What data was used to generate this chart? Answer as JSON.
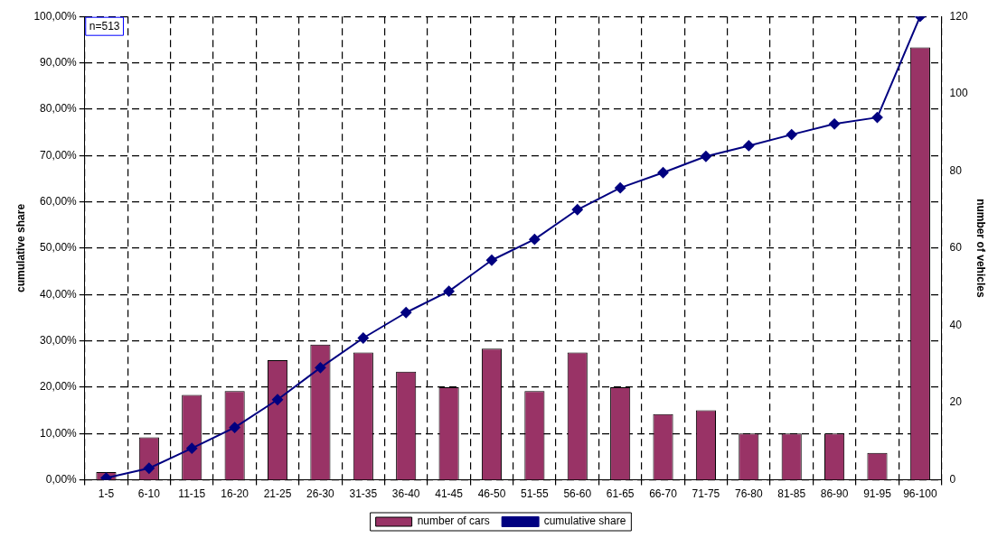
{
  "chart_data": {
    "type": "bar",
    "categories": [
      "1-5",
      "6-10",
      "11-15",
      "16-20",
      "21-25",
      "26-30",
      "31-35",
      "36-40",
      "41-45",
      "46-50",
      "51-55",
      "56-60",
      "61-65",
      "66-70",
      "71-75",
      "76-80",
      "81-85",
      "86-90",
      "91-95",
      "96-100"
    ],
    "series": [
      {
        "name": "number of cars",
        "type": "bar",
        "axis": "y2",
        "color": "#993366",
        "values": [
          2,
          11,
          22,
          23,
          31,
          35,
          33,
          28,
          24,
          34,
          23,
          33,
          24,
          17,
          18,
          12,
          12,
          12,
          7,
          112
        ]
      },
      {
        "name": "cumulative share",
        "type": "line",
        "axis": "y",
        "color": "#000080",
        "marker": "diamond",
        "values": [
          0.4,
          2.5,
          6.8,
          11.3,
          17.3,
          24.2,
          30.6,
          36.1,
          40.7,
          47.4,
          51.9,
          58.3,
          63.0,
          66.3,
          69.8,
          72.1,
          74.5,
          76.8,
          78.2,
          100
        ]
      }
    ],
    "ylabel": "cumulative share",
    "y2label": "number of vehicles",
    "ylim": [
      0,
      100
    ],
    "yticks": [
      {
        "value": 0,
        "label": "0,00%"
      },
      {
        "value": 10,
        "label": "10,00%"
      },
      {
        "value": 20,
        "label": "20,00%"
      },
      {
        "value": 30,
        "label": "30,00%"
      },
      {
        "value": 40,
        "label": "40,00%"
      },
      {
        "value": 50,
        "label": "50,00%"
      },
      {
        "value": 60,
        "label": "60,00%"
      },
      {
        "value": 70,
        "label": "70,00%"
      },
      {
        "value": 80,
        "label": "80,00%"
      },
      {
        "value": 90,
        "label": "90,00%"
      },
      {
        "value": 100,
        "label": "100,00%"
      }
    ],
    "y2lim": [
      0,
      120
    ],
    "y2ticks": [
      0,
      20,
      40,
      60,
      80,
      100,
      120
    ],
    "annotations": [
      "n=513"
    ],
    "grid": true,
    "line_style": "solid",
    "legend": "bottom"
  }
}
